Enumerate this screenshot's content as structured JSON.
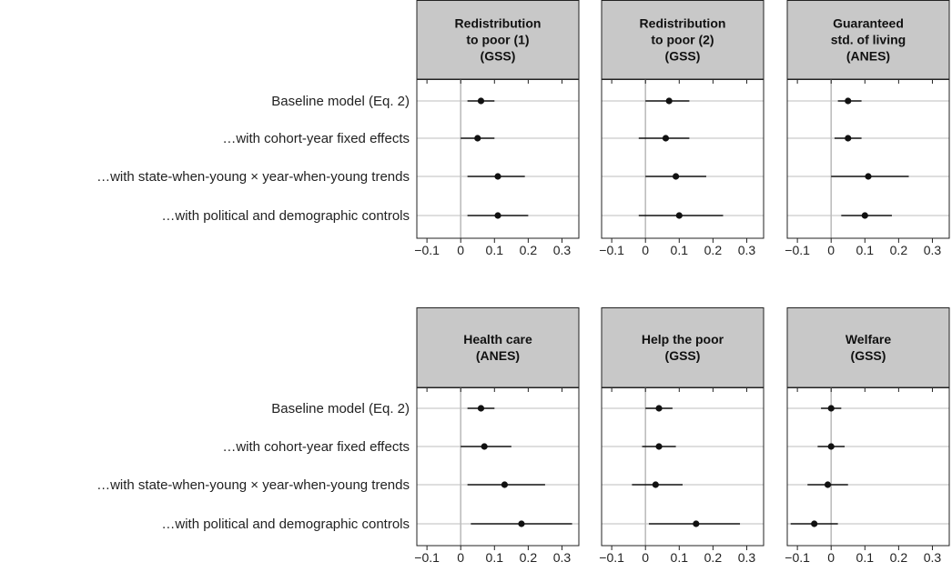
{
  "chart_data": {
    "type": "coefficient-dot-plot",
    "row_labels": [
      "Baseline model (Eq. 2)",
      "…with cohort-year fixed effects",
      "…with state-when-young × year-when-young trends",
      "…with political and demographic controls"
    ],
    "x_ticks": [
      -0.1,
      0,
      0.1,
      0.2,
      0.3
    ],
    "x_tick_labels": [
      "−0.1",
      "0",
      "0.1",
      "0.2",
      "0.3"
    ],
    "xlim": [
      -0.13,
      0.35
    ],
    "reference_line_x": 0,
    "panels": [
      {
        "title_lines": [
          "Redistribution",
          "to poor (1)",
          "(GSS)"
        ],
        "estimates": [
          {
            "est": 0.06,
            "lo": 0.02,
            "hi": 0.1
          },
          {
            "est": 0.05,
            "lo": 0.0,
            "hi": 0.1
          },
          {
            "est": 0.11,
            "lo": 0.02,
            "hi": 0.19
          },
          {
            "est": 0.11,
            "lo": 0.02,
            "hi": 0.2
          }
        ]
      },
      {
        "title_lines": [
          "Redistribution",
          "to poor (2)",
          "(GSS)"
        ],
        "estimates": [
          {
            "est": 0.07,
            "lo": 0.0,
            "hi": 0.13
          },
          {
            "est": 0.06,
            "lo": -0.02,
            "hi": 0.13
          },
          {
            "est": 0.09,
            "lo": 0.0,
            "hi": 0.18
          },
          {
            "est": 0.1,
            "lo": -0.02,
            "hi": 0.23
          }
        ]
      },
      {
        "title_lines": [
          "Guaranteed",
          "std. of living",
          "(ANES)"
        ],
        "estimates": [
          {
            "est": 0.05,
            "lo": 0.02,
            "hi": 0.09
          },
          {
            "est": 0.05,
            "lo": 0.01,
            "hi": 0.09
          },
          {
            "est": 0.11,
            "lo": 0.0,
            "hi": 0.23
          },
          {
            "est": 0.1,
            "lo": 0.03,
            "hi": 0.18
          }
        ]
      },
      {
        "title_lines": [
          "Health care",
          "(ANES)"
        ],
        "estimates": [
          {
            "est": 0.06,
            "lo": 0.02,
            "hi": 0.1
          },
          {
            "est": 0.07,
            "lo": 0.0,
            "hi": 0.15
          },
          {
            "est": 0.13,
            "lo": 0.02,
            "hi": 0.25
          },
          {
            "est": 0.18,
            "lo": 0.03,
            "hi": 0.33
          }
        ]
      },
      {
        "title_lines": [
          "Help the poor",
          "(GSS)"
        ],
        "estimates": [
          {
            "est": 0.04,
            "lo": 0.0,
            "hi": 0.08
          },
          {
            "est": 0.04,
            "lo": -0.01,
            "hi": 0.09
          },
          {
            "est": 0.03,
            "lo": -0.04,
            "hi": 0.11
          },
          {
            "est": 0.15,
            "lo": 0.01,
            "hi": 0.28
          }
        ]
      },
      {
        "title_lines": [
          "Welfare",
          "(GSS)"
        ],
        "estimates": [
          {
            "est": 0.0,
            "lo": -0.03,
            "hi": 0.03
          },
          {
            "est": 0.0,
            "lo": -0.04,
            "hi": 0.04
          },
          {
            "est": -0.01,
            "lo": -0.07,
            "hi": 0.05
          },
          {
            "est": -0.05,
            "lo": -0.12,
            "hi": 0.02
          }
        ]
      }
    ]
  }
}
